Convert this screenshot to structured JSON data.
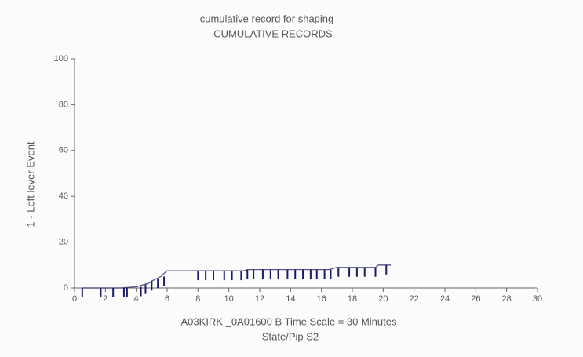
{
  "chart_data": {
    "type": "line",
    "title": "cumulative record for shaping",
    "subtitle": "CUMULATIVE RECORDS",
    "ylabel": "1 - Left lever  Event",
    "xlabel": "A03KIRK _0A01600 B   Time Scale = 30 Minutes",
    "xlabel2": "State/Pip S2",
    "xlim": [
      0,
      30
    ],
    "ylim": [
      0,
      100
    ],
    "xticks": [
      0,
      2,
      4,
      6,
      8,
      10,
      12,
      14,
      16,
      18,
      20,
      22,
      24,
      26,
      28,
      30
    ],
    "yticks": [
      0,
      20,
      40,
      60,
      80,
      100
    ],
    "series": [
      {
        "color": "#1c1c66",
        "x": [
          0.5,
          3,
          4,
          4.5,
          4.8,
          5,
          5.3,
          5.6,
          5.9,
          6,
          11,
          11.2,
          16.5,
          17,
          19.5,
          19.7,
          20.5
        ],
        "values": [
          0,
          0,
          0.5,
          1.5,
          2,
          3,
          4,
          5,
          7,
          7.5,
          7.5,
          8,
          8,
          9,
          9,
          10,
          10
        ]
      }
    ],
    "event_x": [
      0.5,
      1.7,
      2.5,
      3.2,
      3.4,
      4.3,
      4.6,
      5,
      5.4,
      5.8,
      8,
      8.5,
      9,
      9.7,
      10.2,
      10.8,
      11.2,
      11.6,
      12.2,
      12.7,
      13.2,
      13.8,
      14.3,
      14.8,
      15.3,
      15.7,
      16.2,
      16.6,
      17.1,
      17.8,
      18.3,
      18.8,
      19.5,
      20.2
    ]
  }
}
